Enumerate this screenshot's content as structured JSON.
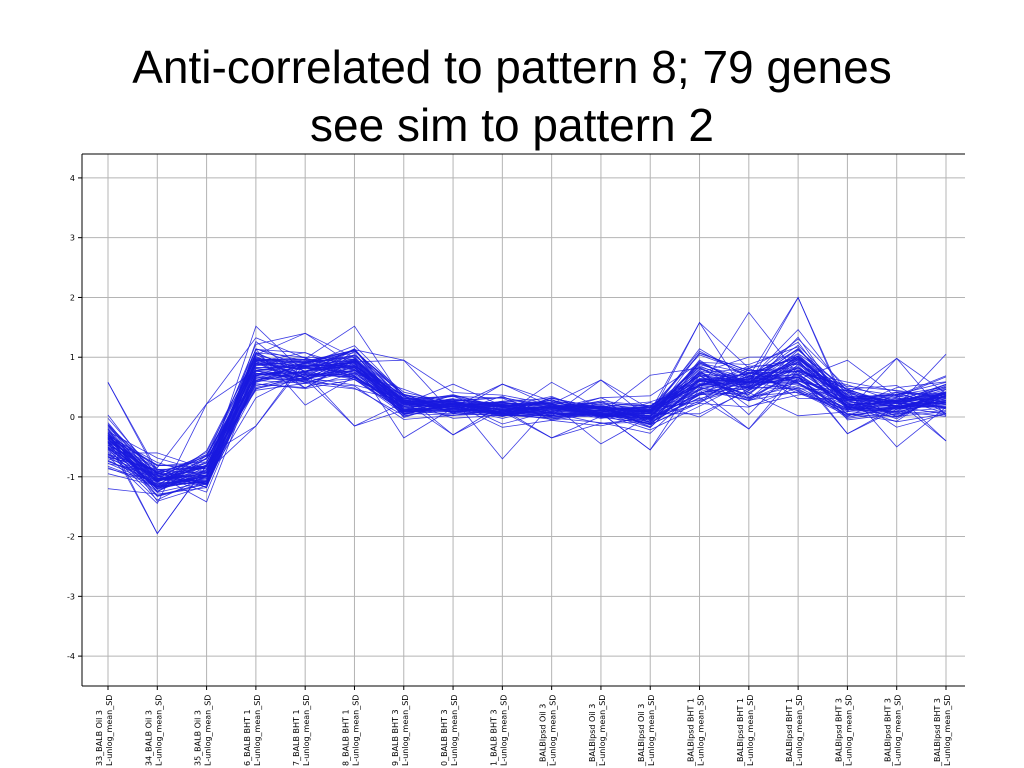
{
  "title": {
    "line1": "Anti-correlated to pattern 8; 79 genes",
    "line2": "see sim to pattern 2"
  },
  "colors": {
    "series": "#1a1adf",
    "grid": "#b4b4b4",
    "axis": "#000000"
  },
  "chart_data": {
    "type": "line",
    "title": "Anti-correlated to pattern 8; 79 genes see sim to pattern 2",
    "xlabel": "",
    "ylabel": "",
    "ylim": [
      -4.5,
      4.4
    ],
    "yticks": [
      4,
      3,
      2,
      1,
      0,
      -1,
      -2,
      -3,
      -4
    ],
    "grid": true,
    "legend": "none",
    "n_series": 79,
    "categories": [
      {
        "line1": "33_BALB Oil 3",
        "line2": "L-unlog_mean_SD"
      },
      {
        "line1": "34_BALB Oil 3",
        "line2": "L-unlog_mean_SD"
      },
      {
        "line1": "35_BALB Oil 3",
        "line2": "L-unlog_mean_SD"
      },
      {
        "line1": "6_BALB BHT 1",
        "line2": "L-unlog_mean_SD"
      },
      {
        "line1": "7_BALB BHT 1",
        "line2": "L-unlog_mean_SD"
      },
      {
        "line1": "8_BALB BHT 1",
        "line2": "L-unlog_mean_SD"
      },
      {
        "line1": "9_BALB BHT 3",
        "line2": "L-unlog_mean_SD"
      },
      {
        "line1": "0_BALB BHT 3",
        "line2": "L-unlog_mean_SD"
      },
      {
        "line1": "1_BALB BHT 3",
        "line2": "L-unlog_mean_SD"
      },
      {
        "line1": "_BALBlpsd Oil 3",
        "line2": "L-unlog_mean_SD"
      },
      {
        "line1": "_BALBlpsd Oil 3",
        "line2": "L-unlog_mean_SD"
      },
      {
        "line1": "_BALBlpsd Oil 3",
        "line2": "L-unlog_mean_SD"
      },
      {
        "line1": "_BALBlpsd BHT 1",
        "line2": "L-unlog_mean_SD"
      },
      {
        "line1": "_BALBlpsd BHT 1",
        "line2": "L-unlog_mean_SD"
      },
      {
        "line1": "_BALBlpsd BHT 1",
        "line2": "L-unlog_mean_SD"
      },
      {
        "line1": "_BALBlpsd BHT 3",
        "line2": "L-unlog_mean_SD"
      },
      {
        "line1": "_BALBlpsd BHT 3",
        "line2": "L-unlog_mean_SD"
      },
      {
        "line1": "_BALBlpsd BHT 3",
        "line2": "L-unlog_mean_SD"
      }
    ],
    "series_mean": [
      -0.45,
      -1.1,
      -0.95,
      0.8,
      0.78,
      0.85,
      0.2,
      0.2,
      0.15,
      0.12,
      0.1,
      0.05,
      0.6,
      0.55,
      0.8,
      0.25,
      0.2,
      0.3
    ],
    "series_spread": [
      0.35,
      0.25,
      0.3,
      0.3,
      0.28,
      0.3,
      0.22,
      0.18,
      0.18,
      0.18,
      0.18,
      0.22,
      0.35,
      0.35,
      0.4,
      0.25,
      0.25,
      0.28
    ],
    "series_min": [
      -1.2,
      -1.95,
      -1.42,
      -0.15,
      0.2,
      -0.15,
      -0.35,
      -0.3,
      -0.7,
      -0.35,
      -0.45,
      -0.55,
      0.0,
      -0.2,
      0.02,
      -0.28,
      -0.5,
      -0.4
    ],
    "series_max": [
      0.58,
      -0.6,
      0.22,
      1.52,
      1.4,
      1.52,
      0.95,
      0.55,
      0.55,
      0.58,
      0.62,
      0.7,
      1.58,
      1.75,
      2.0,
      0.95,
      0.98,
      1.05
    ]
  }
}
